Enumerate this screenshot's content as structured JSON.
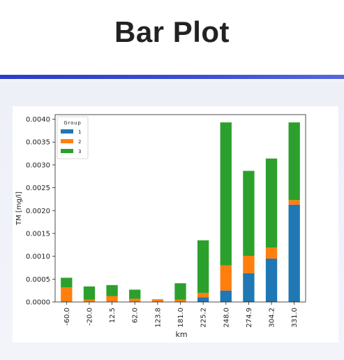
{
  "page": {
    "title": "Bar Plot"
  },
  "colors": {
    "accent": "#2f40cf",
    "series1": "#1f77b4",
    "series2": "#ff7f0e",
    "series3": "#2ca02c"
  },
  "chart_data": {
    "type": "bar",
    "stacked": true,
    "xlabel": "km",
    "ylabel": "TM [mg/l]",
    "categories": [
      "-60.0",
      "-20.0",
      "12.5",
      "62.0",
      "123.8",
      "181.0",
      "225.2",
      "248.0",
      "274.9",
      "304.2",
      "331.0"
    ],
    "series": [
      {
        "name": "1",
        "color": "#1f77b4",
        "values": [
          0.0,
          0.0,
          0.0,
          0.0,
          0.0,
          0.0,
          0.0001,
          0.00025,
          0.00063,
          0.00095,
          0.00213
        ]
      },
      {
        "name": "2",
        "color": "#ff7f0e",
        "values": [
          0.00032,
          5e-05,
          0.00013,
          7e-05,
          6e-05,
          5e-05,
          0.0001,
          0.00055,
          0.00038,
          0.00024,
          0.0001
        ]
      },
      {
        "name": "3",
        "color": "#2ca02c",
        "values": [
          0.00021,
          0.00029,
          0.00024,
          0.0002,
          0.0,
          0.00036,
          0.00115,
          0.00313,
          0.00186,
          0.00195,
          0.0017
        ]
      }
    ],
    "ylim": [
      0,
      0.0041
    ],
    "yticks": [
      "0.0000",
      "0.0005",
      "0.0010",
      "0.0015",
      "0.0020",
      "0.0025",
      "0.0030",
      "0.0035",
      "0.0040"
    ],
    "legend": {
      "title": "Group",
      "placement": "top-left"
    },
    "grid": false
  }
}
